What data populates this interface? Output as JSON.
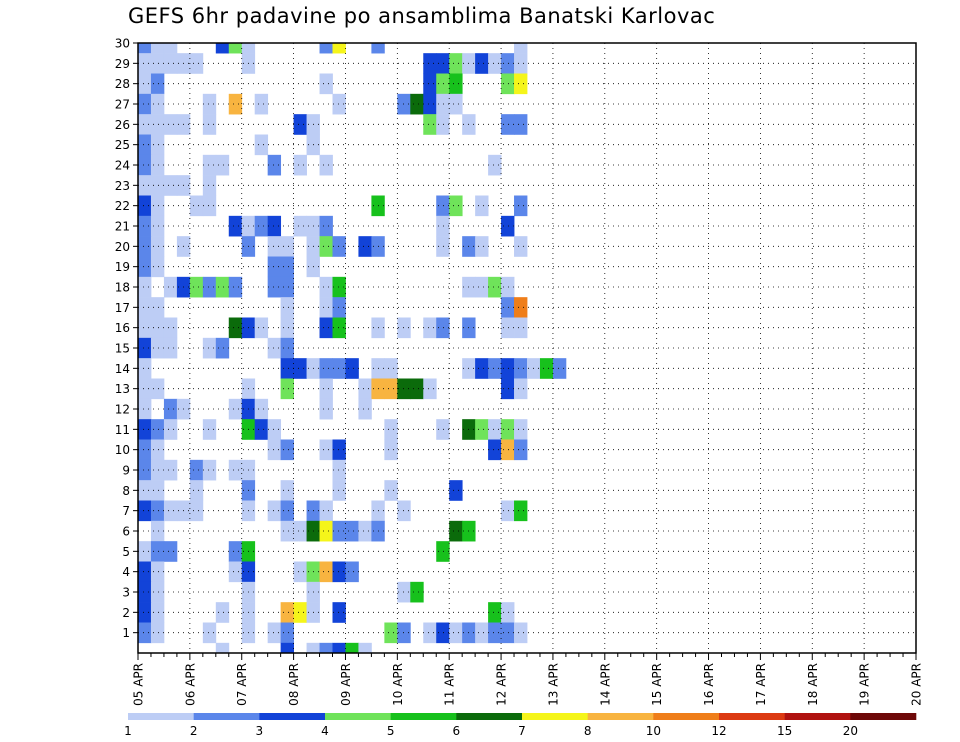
{
  "chart_data": {
    "type": "heatmap",
    "title": "GEFS 6hr padavine po ansamblima Banatski Karlovac",
    "xlabel": "",
    "ylabel": "",
    "x_tick_labels": [
      "05 APR",
      "06 APR",
      "07 APR",
      "08 APR",
      "09 APR",
      "10 APR",
      "11 APR",
      "12 APR",
      "13 APR",
      "14 APR",
      "15 APR",
      "16 APR",
      "17 APR",
      "18 APR",
      "19 APR",
      "20 APR"
    ],
    "y_tick_labels": [
      "1",
      "2",
      "3",
      "4",
      "5",
      "6",
      "7",
      "8",
      "9",
      "10",
      "11",
      "12",
      "13",
      "14",
      "15",
      "16",
      "17",
      "18",
      "19",
      "20",
      "21",
      "22",
      "23",
      "24",
      "25",
      "26",
      "27",
      "28",
      "29",
      "30"
    ],
    "ylim": [
      0,
      30
    ],
    "steps_per_day": 4,
    "grid": true,
    "grid_style": "dotted",
    "legend_placement": "bottom",
    "legend_levels": [
      "1",
      "2",
      "3",
      "4",
      "5",
      "6",
      "7",
      "8",
      "10",
      "12",
      "15",
      "20"
    ],
    "legend_colors": [
      "#bdcdf5",
      "#5b86ea",
      "#1243d8",
      "#6fe35a",
      "#17c11c",
      "#0b6b0b",
      "#f5f51a",
      "#f8b440",
      "#ef7e1a",
      "#dc3a12",
      "#b01210",
      "#6e0808"
    ],
    "cells": [
      [
        30,
        1,
        2
      ],
      [
        30,
        2,
        1
      ],
      [
        30,
        3,
        1
      ],
      [
        30,
        7,
        3
      ],
      [
        30,
        8,
        4
      ],
      [
        30,
        9,
        1
      ],
      [
        30,
        15,
        2
      ],
      [
        30,
        16,
        7
      ],
      [
        30,
        19,
        2
      ],
      [
        30,
        30,
        1
      ],
      [
        29,
        1,
        1
      ],
      [
        29,
        2,
        1
      ],
      [
        29,
        3,
        1
      ],
      [
        29,
        4,
        1
      ],
      [
        29,
        5,
        1
      ],
      [
        29,
        9,
        1
      ],
      [
        29,
        23,
        3
      ],
      [
        29,
        24,
        3
      ],
      [
        29,
        25,
        4
      ],
      [
        29,
        26,
        1
      ],
      [
        29,
        27,
        3
      ],
      [
        29,
        28,
        1
      ],
      [
        29,
        29,
        2
      ],
      [
        29,
        30,
        1
      ],
      [
        28,
        1,
        1
      ],
      [
        28,
        2,
        2
      ],
      [
        28,
        15,
        1
      ],
      [
        28,
        23,
        3
      ],
      [
        28,
        24,
        4
      ],
      [
        28,
        25,
        5
      ],
      [
        28,
        29,
        4
      ],
      [
        28,
        30,
        7
      ],
      [
        27,
        1,
        2
      ],
      [
        27,
        2,
        1
      ],
      [
        27,
        6,
        1
      ],
      [
        27,
        8,
        8
      ],
      [
        27,
        10,
        1
      ],
      [
        27,
        16,
        1
      ],
      [
        27,
        21,
        2
      ],
      [
        27,
        22,
        6
      ],
      [
        27,
        23,
        3
      ],
      [
        27,
        24,
        1
      ],
      [
        27,
        25,
        1
      ],
      [
        26,
        1,
        1
      ],
      [
        26,
        2,
        1
      ],
      [
        26,
        3,
        1
      ],
      [
        26,
        4,
        1
      ],
      [
        26,
        6,
        1
      ],
      [
        26,
        13,
        3
      ],
      [
        26,
        14,
        1
      ],
      [
        26,
        23,
        4
      ],
      [
        26,
        24,
        1
      ],
      [
        26,
        26,
        1
      ],
      [
        26,
        29,
        2
      ],
      [
        26,
        30,
        2
      ],
      [
        25,
        1,
        2
      ],
      [
        25,
        2,
        1
      ],
      [
        25,
        10,
        1
      ],
      [
        25,
        14,
        1
      ],
      [
        24,
        1,
        2
      ],
      [
        24,
        2,
        1
      ],
      [
        24,
        6,
        1
      ],
      [
        24,
        7,
        1
      ],
      [
        24,
        11,
        2
      ],
      [
        24,
        13,
        1
      ],
      [
        24,
        15,
        1
      ],
      [
        24,
        28,
        1
      ],
      [
        23,
        1,
        1
      ],
      [
        23,
        2,
        1
      ],
      [
        23,
        3,
        1
      ],
      [
        23,
        4,
        1
      ],
      [
        23,
        6,
        1
      ],
      [
        22,
        1,
        3
      ],
      [
        22,
        2,
        1
      ],
      [
        22,
        5,
        1
      ],
      [
        22,
        6,
        1
      ],
      [
        22,
        19,
        5
      ],
      [
        22,
        24,
        2
      ],
      [
        22,
        25,
        4
      ],
      [
        22,
        27,
        1
      ],
      [
        22,
        30,
        2
      ],
      [
        21,
        1,
        2
      ],
      [
        21,
        2,
        1
      ],
      [
        21,
        8,
        3
      ],
      [
        21,
        9,
        1
      ],
      [
        21,
        10,
        2
      ],
      [
        21,
        11,
        3
      ],
      [
        21,
        13,
        1
      ],
      [
        21,
        14,
        1
      ],
      [
        21,
        15,
        2
      ],
      [
        21,
        24,
        1
      ],
      [
        21,
        29,
        3
      ],
      [
        20,
        1,
        2
      ],
      [
        20,
        2,
        1
      ],
      [
        20,
        4,
        1
      ],
      [
        20,
        9,
        2
      ],
      [
        20,
        11,
        1
      ],
      [
        20,
        12,
        1
      ],
      [
        20,
        14,
        1
      ],
      [
        20,
        15,
        4
      ],
      [
        20,
        16,
        2
      ],
      [
        20,
        18,
        3
      ],
      [
        20,
        19,
        2
      ],
      [
        20,
        24,
        1
      ],
      [
        20,
        26,
        2
      ],
      [
        20,
        27,
        1
      ],
      [
        20,
        30,
        1
      ],
      [
        19,
        1,
        2
      ],
      [
        19,
        2,
        1
      ],
      [
        19,
        11,
        2
      ],
      [
        19,
        12,
        2
      ],
      [
        19,
        14,
        1
      ],
      [
        18,
        1,
        1
      ],
      [
        18,
        3,
        1
      ],
      [
        18,
        4,
        3
      ],
      [
        18,
        5,
        4
      ],
      [
        18,
        6,
        2
      ],
      [
        18,
        7,
        4
      ],
      [
        18,
        8,
        2
      ],
      [
        18,
        11,
        2
      ],
      [
        18,
        12,
        2
      ],
      [
        18,
        15,
        1
      ],
      [
        18,
        16,
        5
      ],
      [
        18,
        26,
        1
      ],
      [
        18,
        27,
        1
      ],
      [
        18,
        28,
        4
      ],
      [
        18,
        29,
        1
      ],
      [
        17,
        1,
        1
      ],
      [
        17,
        2,
        1
      ],
      [
        17,
        12,
        1
      ],
      [
        17,
        15,
        1
      ],
      [
        17,
        16,
        2
      ],
      [
        17,
        29,
        2
      ],
      [
        17,
        30,
        9
      ],
      [
        16,
        1,
        1
      ],
      [
        16,
        2,
        1
      ],
      [
        16,
        3,
        1
      ],
      [
        16,
        8,
        6
      ],
      [
        16,
        9,
        3
      ],
      [
        16,
        10,
        1
      ],
      [
        16,
        12,
        1
      ],
      [
        16,
        15,
        3
      ],
      [
        16,
        16,
        5
      ],
      [
        16,
        19,
        1
      ],
      [
        16,
        21,
        1
      ],
      [
        16,
        23,
        1
      ],
      [
        16,
        24,
        2
      ],
      [
        16,
        26,
        2
      ],
      [
        16,
        29,
        1
      ],
      [
        16,
        30,
        1
      ],
      [
        15,
        1,
        3
      ],
      [
        15,
        2,
        1
      ],
      [
        15,
        3,
        1
      ],
      [
        15,
        6,
        1
      ],
      [
        15,
        7,
        2
      ],
      [
        15,
        11,
        1
      ],
      [
        15,
        12,
        2
      ],
      [
        14,
        1,
        1
      ],
      [
        14,
        12,
        3
      ],
      [
        14,
        13,
        3
      ],
      [
        14,
        14,
        1
      ],
      [
        14,
        15,
        2
      ],
      [
        14,
        16,
        2
      ],
      [
        14,
        17,
        3
      ],
      [
        14,
        19,
        1
      ],
      [
        14,
        20,
        1
      ],
      [
        14,
        26,
        1
      ],
      [
        14,
        27,
        3
      ],
      [
        14,
        28,
        2
      ],
      [
        14,
        29,
        3
      ],
      [
        14,
        30,
        2
      ],
      [
        14,
        31,
        1
      ],
      [
        14,
        32,
        5
      ],
      [
        14,
        33,
        2
      ],
      [
        13,
        1,
        1
      ],
      [
        13,
        2,
        1
      ],
      [
        13,
        9,
        1
      ],
      [
        13,
        12,
        4
      ],
      [
        13,
        15,
        1
      ],
      [
        13,
        18,
        1
      ],
      [
        13,
        19,
        8
      ],
      [
        13,
        20,
        8
      ],
      [
        13,
        21,
        6
      ],
      [
        13,
        22,
        6
      ],
      [
        13,
        23,
        1
      ],
      [
        13,
        29,
        3
      ],
      [
        13,
        30,
        1
      ],
      [
        12,
        1,
        1
      ],
      [
        12,
        3,
        2
      ],
      [
        12,
        4,
        1
      ],
      [
        12,
        8,
        1
      ],
      [
        12,
        9,
        3
      ],
      [
        12,
        10,
        1
      ],
      [
        12,
        15,
        1
      ],
      [
        12,
        18,
        1
      ],
      [
        11,
        1,
        3
      ],
      [
        11,
        2,
        2
      ],
      [
        11,
        3,
        1
      ],
      [
        11,
        6,
        1
      ],
      [
        11,
        9,
        5
      ],
      [
        11,
        10,
        3
      ],
      [
        11,
        11,
        1
      ],
      [
        11,
        20,
        1
      ],
      [
        11,
        24,
        1
      ],
      [
        11,
        26,
        6
      ],
      [
        11,
        27,
        4
      ],
      [
        11,
        28,
        1
      ],
      [
        11,
        29,
        4
      ],
      [
        11,
        30,
        1
      ],
      [
        10,
        1,
        2
      ],
      [
        10,
        2,
        1
      ],
      [
        10,
        11,
        1
      ],
      [
        10,
        12,
        2
      ],
      [
        10,
        15,
        1
      ],
      [
        10,
        16,
        3
      ],
      [
        10,
        20,
        1
      ],
      [
        10,
        28,
        3
      ],
      [
        10,
        29,
        8
      ],
      [
        10,
        30,
        2
      ],
      [
        9,
        1,
        2
      ],
      [
        9,
        2,
        1
      ],
      [
        9,
        3,
        1
      ],
      [
        9,
        5,
        2
      ],
      [
        9,
        6,
        1
      ],
      [
        9,
        8,
        1
      ],
      [
        9,
        9,
        1
      ],
      [
        9,
        16,
        1
      ],
      [
        8,
        1,
        1
      ],
      [
        8,
        2,
        1
      ],
      [
        8,
        5,
        1
      ],
      [
        8,
        9,
        2
      ],
      [
        8,
        12,
        1
      ],
      [
        8,
        16,
        1
      ],
      [
        8,
        20,
        1
      ],
      [
        8,
        25,
        3
      ],
      [
        7,
        1,
        3
      ],
      [
        7,
        2,
        2
      ],
      [
        7,
        3,
        1
      ],
      [
        7,
        4,
        1
      ],
      [
        7,
        5,
        1
      ],
      [
        7,
        9,
        1
      ],
      [
        7,
        11,
        1
      ],
      [
        7,
        12,
        2
      ],
      [
        7,
        14,
        2
      ],
      [
        7,
        15,
        1
      ],
      [
        7,
        19,
        1
      ],
      [
        7,
        21,
        1
      ],
      [
        7,
        29,
        1
      ],
      [
        7,
        30,
        5
      ],
      [
        6,
        2,
        1
      ],
      [
        6,
        12,
        1
      ],
      [
        6,
        13,
        1
      ],
      [
        6,
        14,
        6
      ],
      [
        6,
        15,
        7
      ],
      [
        6,
        16,
        2
      ],
      [
        6,
        17,
        2
      ],
      [
        6,
        18,
        1
      ],
      [
        6,
        19,
        2
      ],
      [
        6,
        25,
        6
      ],
      [
        6,
        26,
        5
      ],
      [
        5,
        1,
        1
      ],
      [
        5,
        2,
        2
      ],
      [
        5,
        3,
        2
      ],
      [
        5,
        8,
        2
      ],
      [
        5,
        9,
        5
      ],
      [
        5,
        24,
        5
      ],
      [
        4,
        1,
        3
      ],
      [
        4,
        2,
        1
      ],
      [
        4,
        8,
        1
      ],
      [
        4,
        9,
        3
      ],
      [
        4,
        13,
        1
      ],
      [
        4,
        14,
        4
      ],
      [
        4,
        15,
        8
      ],
      [
        4,
        16,
        3
      ],
      [
        4,
        17,
        2
      ],
      [
        3,
        1,
        3
      ],
      [
        3,
        2,
        1
      ],
      [
        3,
        9,
        1
      ],
      [
        3,
        14,
        1
      ],
      [
        3,
        21,
        1
      ],
      [
        3,
        22,
        5
      ],
      [
        2,
        1,
        3
      ],
      [
        2,
        2,
        1
      ],
      [
        2,
        7,
        1
      ],
      [
        2,
        9,
        1
      ],
      [
        2,
        12,
        8
      ],
      [
        2,
        13,
        7
      ],
      [
        2,
        14,
        1
      ],
      [
        2,
        16,
        3
      ],
      [
        2,
        28,
        5
      ],
      [
        2,
        29,
        1
      ],
      [
        1,
        1,
        2
      ],
      [
        1,
        2,
        1
      ],
      [
        1,
        6,
        1
      ],
      [
        1,
        9,
        1
      ],
      [
        1,
        11,
        1
      ],
      [
        1,
        12,
        2
      ],
      [
        1,
        20,
        4
      ],
      [
        1,
        21,
        2
      ],
      [
        1,
        23,
        1
      ],
      [
        1,
        24,
        3
      ],
      [
        1,
        25,
        1
      ],
      [
        1,
        26,
        2
      ],
      [
        1,
        27,
        1
      ],
      [
        1,
        28,
        2
      ],
      [
        1,
        29,
        2
      ],
      [
        1,
        30,
        1
      ],
      [
        0,
        7,
        1
      ],
      [
        0,
        12,
        3
      ],
      [
        0,
        14,
        1
      ],
      [
        0,
        15,
        2
      ],
      [
        0,
        16,
        3
      ],
      [
        0,
        17,
        5
      ],
      [
        0,
        18,
        1
      ]
    ]
  }
}
